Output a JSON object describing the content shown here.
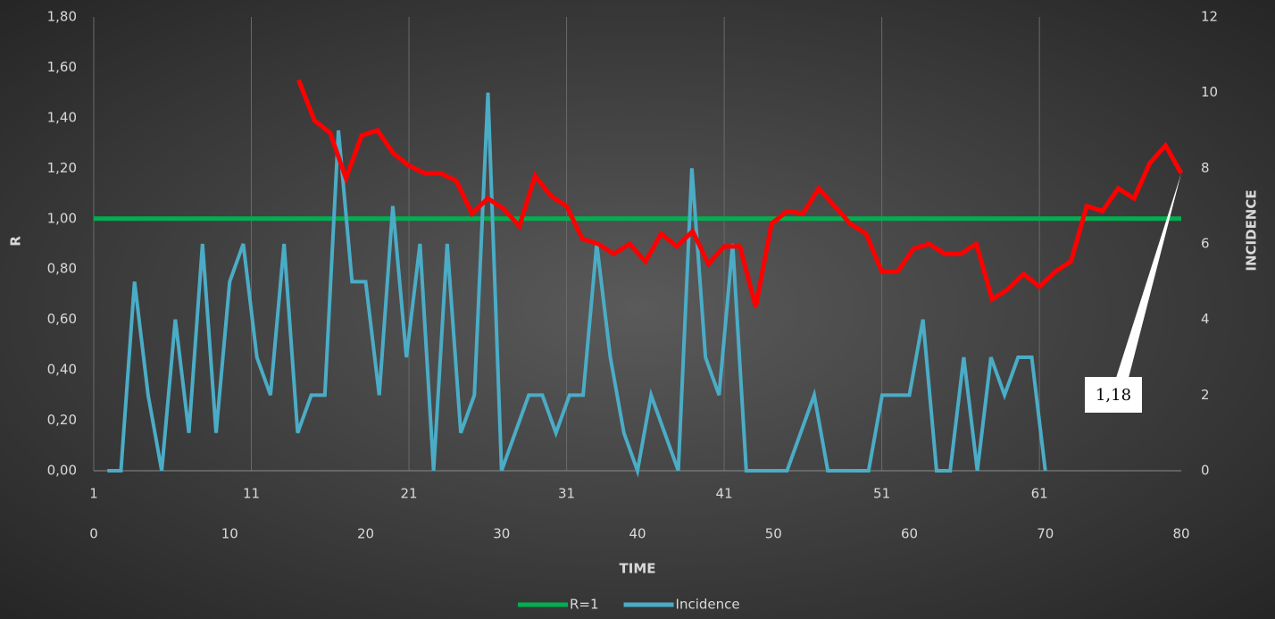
{
  "chart_data": {
    "type": "line",
    "xlabel": "TIME",
    "ylabel": "R",
    "y2label": "INCIDENCE",
    "xlim": [
      1,
      70
    ],
    "xticks": [
      1,
      11,
      21,
      31,
      41,
      51,
      61
    ],
    "x2lim": [
      0,
      80
    ],
    "x2ticks": [
      0,
      10,
      20,
      30,
      40,
      50,
      60,
      70,
      80
    ],
    "ylim": [
      0,
      1.8
    ],
    "yticks": [
      {
        "value": 0,
        "label": "0,00"
      },
      {
        "value": 0.2,
        "label": "0,20"
      },
      {
        "value": 0.4,
        "label": "0,40"
      },
      {
        "value": 0.6,
        "label": "0,60"
      },
      {
        "value": 0.8,
        "label": "0,80"
      },
      {
        "value": 1,
        "label": "1,00"
      },
      {
        "value": 1.2,
        "label": "1,20"
      },
      {
        "value": 1.4,
        "label": "1,40"
      },
      {
        "value": 1.6,
        "label": "1,60"
      },
      {
        "value": 1.8,
        "label": "1,80"
      }
    ],
    "y2lim": [
      0,
      12
    ],
    "y2ticks": [
      0,
      2,
      4,
      6,
      8,
      10,
      12
    ],
    "grid": true,
    "legend": "bottom",
    "series": [
      {
        "name": "R=1",
        "color": "#00b050",
        "x": [
          1,
          70
        ],
        "values": [
          1,
          1
        ]
      },
      {
        "color": "#ff0000",
        "x": [
          14,
          15,
          16,
          17,
          18,
          19,
          20,
          21,
          22,
          23,
          24,
          25,
          26,
          27,
          28,
          29,
          30,
          31,
          32,
          33,
          34,
          35,
          36,
          37,
          38,
          39,
          40,
          41,
          42,
          43,
          44,
          45,
          46,
          47,
          48,
          49,
          50,
          51,
          52,
          53,
          54,
          55,
          56,
          57,
          58,
          59,
          60,
          61,
          62,
          63,
          64,
          65,
          66,
          67,
          68,
          69,
          70
        ],
        "values": [
          1.55,
          1.39,
          1.34,
          1.16,
          1.33,
          1.35,
          1.26,
          1.21,
          1.18,
          1.18,
          1.15,
          1.02,
          1.08,
          1.04,
          0.97,
          1.17,
          1.09,
          1.05,
          0.92,
          0.9,
          0.86,
          0.9,
          0.83,
          0.94,
          0.89,
          0.95,
          0.82,
          0.89,
          0.89,
          0.65,
          0.98,
          1.03,
          1.02,
          1.12,
          1.05,
          0.98,
          0.94,
          0.79,
          0.79,
          0.88,
          0.9,
          0.86,
          0.86,
          0.9,
          0.68,
          0.72,
          0.78,
          0.73,
          0.79,
          0.83,
          1.05,
          1.03,
          1.12,
          1.08,
          1.22,
          1.29,
          1.18
        ]
      },
      {
        "name": "Incidence",
        "color": "#4bacc6",
        "axis": "y2",
        "xaxis": "x2",
        "x": [
          1,
          2,
          3,
          4,
          5,
          6,
          7,
          8,
          9,
          10,
          11,
          12,
          13,
          14,
          15,
          16,
          17,
          18,
          19,
          20,
          21,
          22,
          23,
          24,
          25,
          26,
          27,
          28,
          29,
          30,
          31,
          32,
          33,
          34,
          35,
          36,
          37,
          38,
          39,
          40,
          41,
          42,
          43,
          44,
          45,
          46,
          47,
          48,
          49,
          50,
          51,
          52,
          53,
          54,
          55,
          56,
          57,
          58,
          59,
          60,
          61,
          62,
          63,
          64,
          65,
          66,
          67,
          68,
          69,
          70
        ],
        "values": [
          0,
          0,
          5,
          2,
          0,
          4,
          1,
          6,
          1,
          5,
          6,
          3,
          2,
          6,
          1,
          2,
          2,
          9,
          5,
          5,
          2,
          7,
          3,
          6,
          0,
          6,
          1,
          2,
          10,
          0,
          1,
          2,
          2,
          1,
          2,
          2,
          6,
          3,
          1,
          0,
          2,
          1,
          0,
          8,
          3,
          2,
          6,
          0,
          0,
          0,
          0,
          1,
          2,
          0,
          0,
          0,
          0,
          2,
          2,
          2,
          4,
          0,
          0,
          3,
          0,
          3,
          2,
          3,
          3,
          0
        ]
      }
    ],
    "annotation": {
      "text": "1,18"
    }
  }
}
